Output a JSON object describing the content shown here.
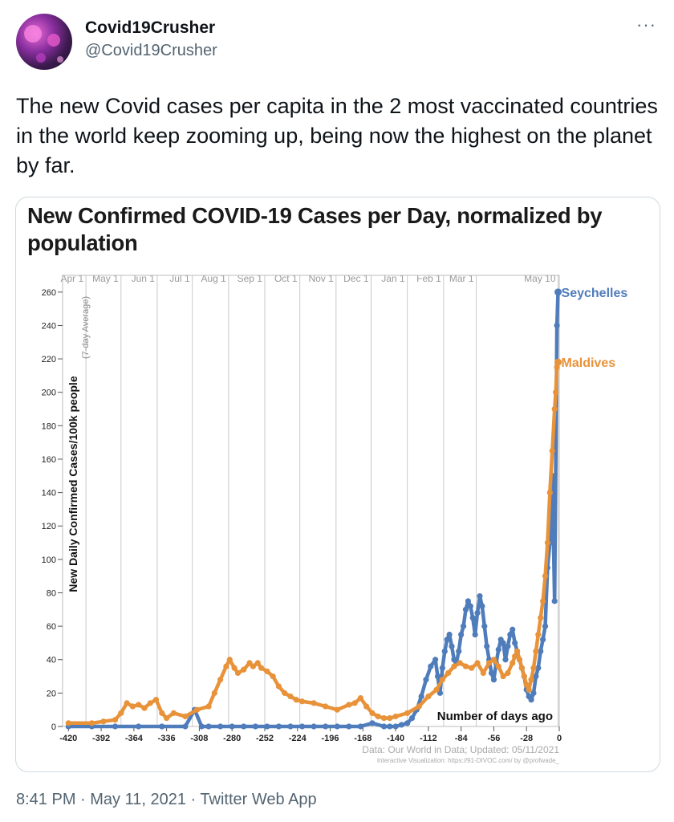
{
  "author": {
    "display_name": "Covid19Crusher",
    "handle": "@Covid19Crusher",
    "avatar_icon": "avatar-image",
    "more_icon": "more-options-icon",
    "more_label": "···"
  },
  "tweet": {
    "text": "The new Covid cases per capita in the 2 most vaccinated countries in the world keep zooming up, being now the highest on the planet by far."
  },
  "footer": {
    "time": "8:41 PM",
    "separator": " · ",
    "date": "May 11, 2021",
    "app": "Twitter Web App"
  },
  "chart_data": {
    "type": "line",
    "title": "New Confirmed COVID-19 Cases per Day, normalized by population",
    "ylabel": "New Daily Confirmed Cases/100k people",
    "ylabel_sub": "(7-day Average)",
    "xlabel": "Number of days ago",
    "xlim": [
      -425,
      0
    ],
    "ylim": [
      0,
      270
    ],
    "x_ticks": [
      -420,
      -392,
      -364,
      -336,
      -308,
      -280,
      -252,
      -224,
      -196,
      -168,
      -140,
      -112,
      -84,
      -56,
      -28,
      0
    ],
    "y_ticks": [
      0,
      20,
      40,
      60,
      80,
      100,
      120,
      140,
      160,
      180,
      200,
      220,
      240,
      260
    ],
    "month_markers": [
      {
        "label": "Apr 1",
        "x": -405
      },
      {
        "label": "May 1",
        "x": -375
      },
      {
        "label": "Jun 1",
        "x": -344
      },
      {
        "label": "Jul 1",
        "x": -314
      },
      {
        "label": "Aug 1",
        "x": -283
      },
      {
        "label": "Sep 1",
        "x": -252
      },
      {
        "label": "Oct 1",
        "x": -222
      },
      {
        "label": "Nov 1",
        "x": -191
      },
      {
        "label": "Dec 1",
        "x": -161
      },
      {
        "label": "Jan 1",
        "x": -130
      },
      {
        "label": "Feb 1",
        "x": -99
      },
      {
        "label": "Mar 1",
        "x": -71
      },
      {
        "label": "May 10",
        "x": -1
      }
    ],
    "grid": true,
    "source": "Data: Our World in Data; Updated: 05/11/2021",
    "credit": "Interactive Visualization: https://91-DIVOC.com/ by @profwade_",
    "series": [
      {
        "name": "Seychelles",
        "color": "#4f7cba",
        "x": [
          -420,
          -400,
          -380,
          -360,
          -340,
          -320,
          -312,
          -306,
          -300,
          -290,
          -280,
          -270,
          -260,
          -250,
          -240,
          -230,
          -220,
          -210,
          -200,
          -190,
          -180,
          -170,
          -160,
          -150,
          -145,
          -140,
          -135,
          -130,
          -126,
          -122,
          -118,
          -114,
          -110,
          -106,
          -104,
          -102,
          -100,
          -98,
          -96,
          -94,
          -92,
          -90,
          -88,
          -86,
          -84,
          -82,
          -80,
          -78,
          -76,
          -74,
          -72,
          -70,
          -68,
          -66,
          -64,
          -62,
          -60,
          -58,
          -56,
          -54,
          -52,
          -50,
          -48,
          -46,
          -44,
          -42,
          -40,
          -38,
          -36,
          -34,
          -32,
          -30,
          -28,
          -26,
          -24,
          -22,
          -20,
          -18,
          -16,
          -14,
          -12,
          -10,
          -8,
          -6,
          -4,
          -2,
          -1
        ],
        "y": [
          0,
          0,
          0,
          0,
          0,
          0,
          10,
          0,
          0,
          0,
          0,
          0,
          0,
          0,
          0,
          0,
          0,
          0,
          0,
          0,
          0,
          0,
          2,
          0,
          0,
          0,
          1,
          2,
          5,
          10,
          18,
          28,
          36,
          40,
          30,
          20,
          35,
          45,
          52,
          55,
          48,
          40,
          38,
          45,
          55,
          60,
          70,
          75,
          72,
          65,
          55,
          68,
          78,
          72,
          60,
          48,
          40,
          32,
          28,
          38,
          46,
          52,
          50,
          40,
          48,
          55,
          58,
          50,
          45,
          40,
          35,
          30,
          22,
          18,
          16,
          20,
          30,
          35,
          45,
          52,
          60,
          95,
          110,
          150,
          75,
          240,
          260
        ]
      },
      {
        "name": "Maldives",
        "color": "#e8923a",
        "x": [
          -420,
          -400,
          -390,
          -380,
          -375,
          -370,
          -365,
          -360,
          -355,
          -350,
          -345,
          -340,
          -336,
          -330,
          -320,
          -310,
          -300,
          -295,
          -290,
          -285,
          -282,
          -278,
          -275,
          -270,
          -265,
          -262,
          -258,
          -255,
          -250,
          -245,
          -240,
          -235,
          -230,
          -225,
          -220,
          -210,
          -200,
          -190,
          -180,
          -175,
          -170,
          -165,
          -160,
          -155,
          -150,
          -145,
          -140,
          -130,
          -120,
          -112,
          -105,
          -100,
          -95,
          -90,
          -85,
          -80,
          -75,
          -70,
          -65,
          -60,
          -56,
          -52,
          -48,
          -44,
          -40,
          -38,
          -36,
          -34,
          -32,
          -30,
          -28,
          -26,
          -24,
          -22,
          -20,
          -18,
          -16,
          -14,
          -12,
          -10,
          -8,
          -6,
          -4,
          -3,
          -2,
          -1
        ],
        "y": [
          2,
          2,
          3,
          4,
          8,
          14,
          12,
          13,
          11,
          14,
          16,
          8,
          5,
          8,
          6,
          10,
          12,
          20,
          28,
          36,
          40,
          35,
          32,
          34,
          38,
          36,
          38,
          35,
          33,
          30,
          24,
          20,
          18,
          16,
          15,
          14,
          12,
          10,
          13,
          14,
          17,
          12,
          8,
          6,
          5,
          5,
          6,
          8,
          12,
          18,
          22,
          28,
          32,
          36,
          38,
          36,
          35,
          38,
          32,
          38,
          40,
          36,
          30,
          32,
          38,
          42,
          45,
          40,
          35,
          30,
          25,
          22,
          28,
          35,
          45,
          55,
          65,
          75,
          90,
          110,
          140,
          165,
          190,
          200,
          215,
          218
        ]
      }
    ]
  }
}
